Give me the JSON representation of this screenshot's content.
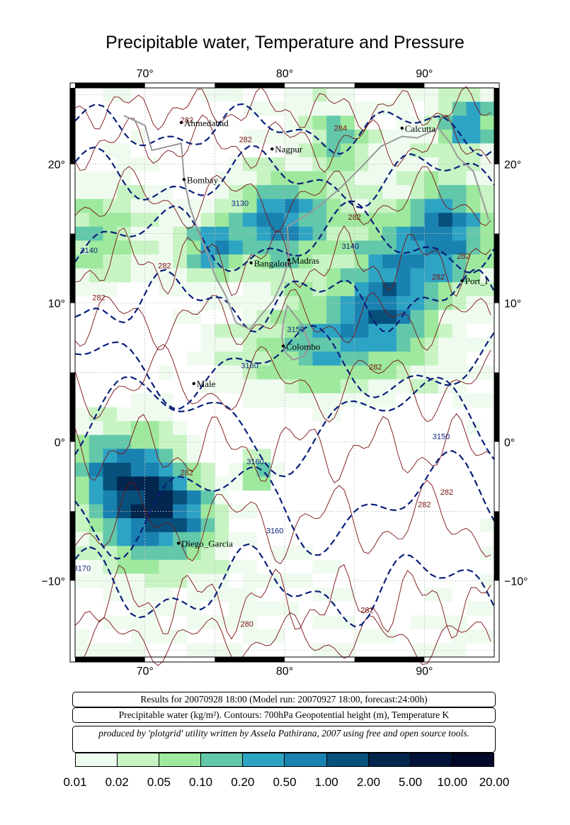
{
  "title": "Precipitable water, Temperature and Pressure",
  "lon_labels": [
    "70°",
    "80°",
    "90°"
  ],
  "lat_labels": [
    "20°",
    "10°",
    "0°",
    "−10°"
  ],
  "cities": [
    {
      "name": "Ahmedabad",
      "lon": 72.6,
      "lat": 23.0
    },
    {
      "name": "Nagpur",
      "lon": 79.1,
      "lat": 21.1
    },
    {
      "name": "Calcutta",
      "lon": 88.4,
      "lat": 22.6
    },
    {
      "name": "Bombay",
      "lon": 72.8,
      "lat": 18.9
    },
    {
      "name": "Bangalore",
      "lon": 77.6,
      "lat": 12.9
    },
    {
      "name": "Madras",
      "lon": 80.3,
      "lat": 13.1
    },
    {
      "name": "Port_Blair",
      "label": "Port_I",
      "lon": 92.7,
      "lat": 11.6
    },
    {
      "name": "Colombo",
      "lon": 79.9,
      "lat": 6.9
    },
    {
      "name": "Male",
      "lon": 73.5,
      "lat": 4.2
    },
    {
      "name": "Diego_Garcia",
      "lon": 72.4,
      "lat": -7.3
    }
  ],
  "contour_labels": [
    {
      "text": "282",
      "lon": 73.0,
      "lat": 23.0
    },
    {
      "text": "282",
      "lon": 77.2,
      "lat": 21.6
    },
    {
      "text": "284",
      "lon": 84.0,
      "lat": 22.4
    },
    {
      "text": "3130",
      "lon": 76.8,
      "lat": 17.0
    },
    {
      "text": "282",
      "lon": 85.0,
      "lat": 16.0
    },
    {
      "text": "3140",
      "lon": 66.0,
      "lat": 13.6
    },
    {
      "text": "3140",
      "lon": 84.7,
      "lat": 13.9
    },
    {
      "text": "282",
      "lon": 71.4,
      "lat": 12.5
    },
    {
      "text": "282",
      "lon": 91.0,
      "lat": 11.7
    },
    {
      "text": "282",
      "lon": 92.8,
      "lat": 13.2
    },
    {
      "text": "282",
      "lon": 66.7,
      "lat": 10.2
    },
    {
      "text": "3150",
      "lon": 80.8,
      "lat": 7.9
    },
    {
      "text": "3160",
      "lon": 77.5,
      "lat": 5.3
    },
    {
      "text": "282",
      "lon": 86.5,
      "lat": 5.2
    },
    {
      "text": "3150",
      "lon": 91.2,
      "lat": 0.2
    },
    {
      "text": "3160",
      "lon": 77.9,
      "lat": -1.6
    },
    {
      "text": "282",
      "lon": 73.0,
      "lat": -2.4
    },
    {
      "text": "282",
      "lon": 90.0,
      "lat": -4.7
    },
    {
      "text": "282",
      "lon": 91.6,
      "lat": -3.8
    },
    {
      "text": "3160",
      "lon": 79.3,
      "lat": -6.6
    },
    {
      "text": "3170",
      "lon": 65.5,
      "lat": -9.3
    },
    {
      "text": "280",
      "lon": 77.3,
      "lat": -13.3
    },
    {
      "text": "282",
      "lon": 85.9,
      "lat": -12.3
    }
  ],
  "captions": {
    "results": "Results for 20070928 18:00 (Model run: 20070927 18:00, forecast:24:00h)",
    "description": "Precipitable water (kg/m²).  Contours: 700hPa Geopotential height (m), Temperature K",
    "credit": "produced by 'plotgrid' utility written by Assela Pathirana, 2007 using free and open source tools."
  },
  "legend": {
    "colors": [
      "#f0fbf0",
      "#c8f4c4",
      "#9ee99e",
      "#63c8aa",
      "#2ea4c4",
      "#1a82b0",
      "#07507c",
      "#03264e",
      "#02123a",
      "#010828"
    ],
    "labels": [
      "0.01",
      "0.02",
      "0.05",
      "0.10",
      "0.20",
      "0.50",
      "1.00",
      "2.00",
      "5.00",
      "10.00",
      "20.00"
    ]
  }
}
